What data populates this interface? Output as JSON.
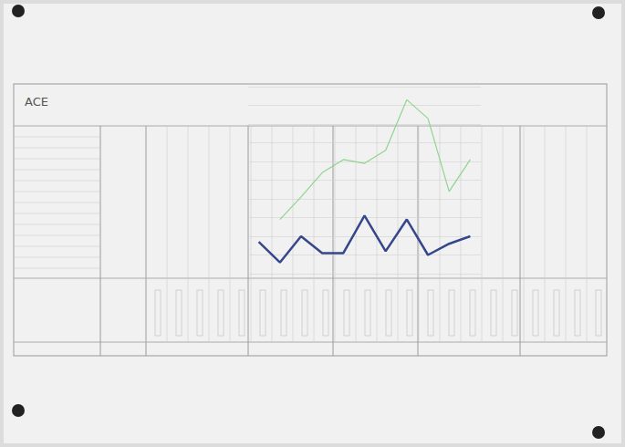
{
  "chart_data": {
    "type": "line",
    "title": "ACE",
    "categories": [
      null,
      null,
      null,
      null,
      null,
      null,
      null,
      null,
      null,
      null,
      null
    ],
    "series": [
      {
        "color": "#8fd48f",
        "marker": "none",
        "line_style": "solid",
        "values": [
          null,
          29,
          41,
          54,
          61,
          59,
          66,
          93,
          83,
          44,
          61
        ]
      },
      {
        "color": "#36468a",
        "marker": "none",
        "line_style": "solid",
        "values": [
          17,
          6,
          20,
          11,
          11,
          31,
          12,
          29,
          10,
          16,
          20
        ]
      }
    ],
    "ylim": [
      0,
      100
    ],
    "yticks": [
      0,
      10,
      20,
      30,
      40,
      50,
      60,
      70,
      80,
      90,
      100
    ],
    "grid": true,
    "tick_labels": false
  }
}
